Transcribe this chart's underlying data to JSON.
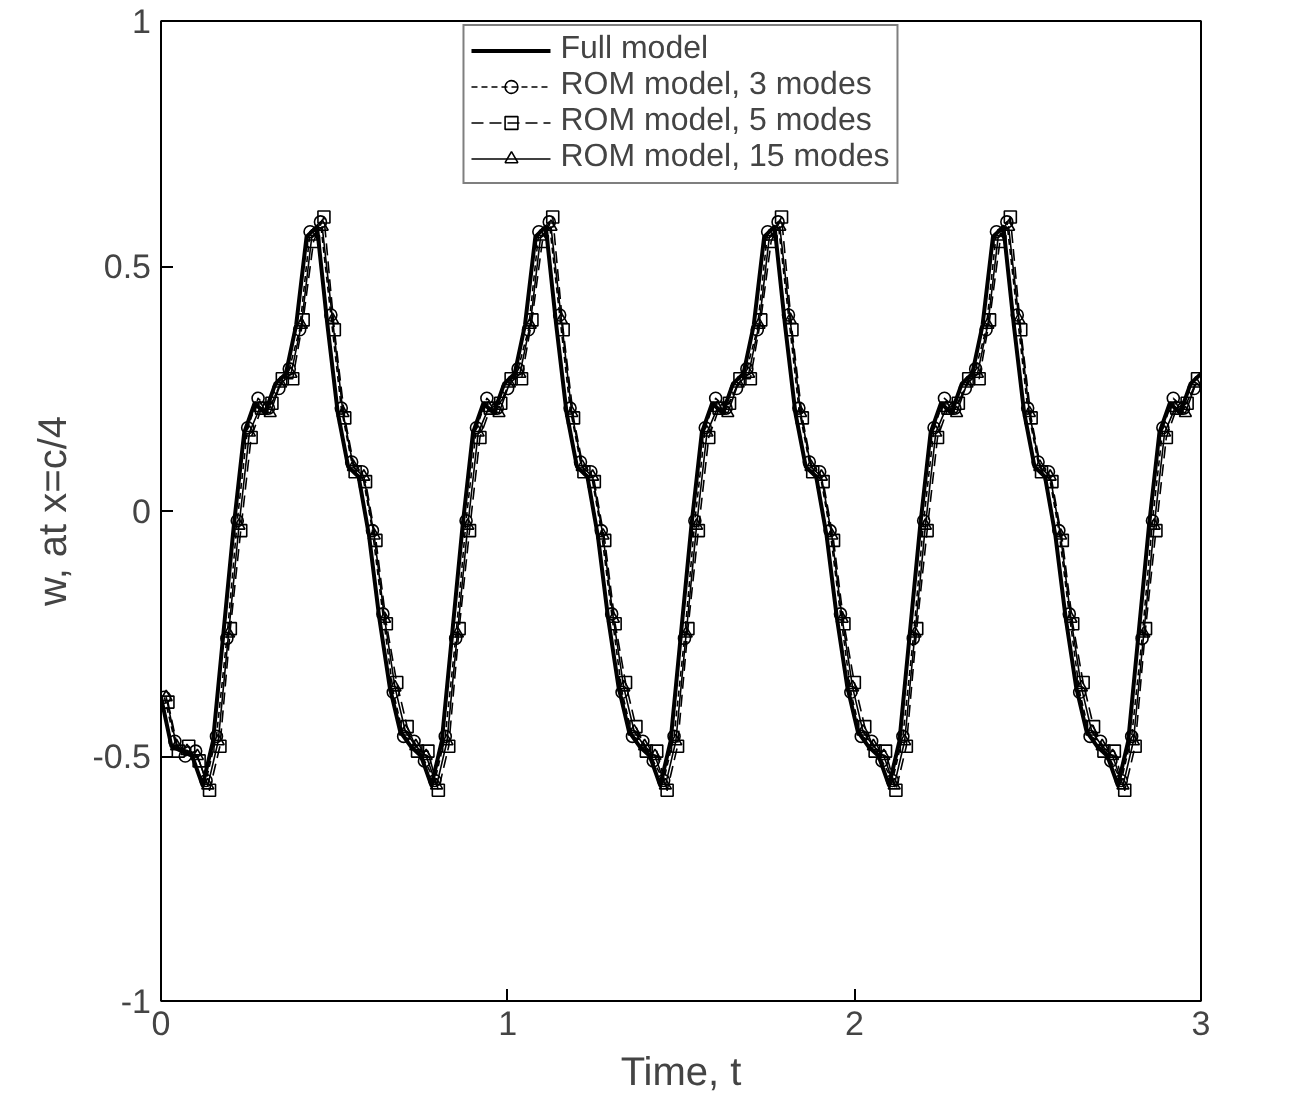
{
  "chart_data": {
    "type": "line",
    "xlabel": "Time, t",
    "ylabel": "w, at x=c/4",
    "xlim": [
      0,
      3
    ],
    "ylim": [
      -1,
      1
    ],
    "xticks": [
      0,
      1,
      2,
      3
    ],
    "yticks": [
      -1,
      -0.5,
      0,
      0.5,
      1
    ],
    "grid": false,
    "legend": "top",
    "x": [
      0,
      0.03,
      0.06,
      0.09,
      0.12,
      0.15,
      0.18,
      0.21,
      0.24,
      0.27,
      0.3,
      0.33,
      0.36,
      0.39,
      0.42,
      0.45,
      0.48,
      0.51,
      0.54,
      0.57,
      0.6,
      0.63,
      0.66,
      0.69,
      0.72,
      0.75,
      0.78,
      0.81,
      0.84,
      0.87,
      0.9,
      0.93,
      0.96,
      0.99,
      1.02,
      1.05,
      1.08,
      1.11,
      1.14,
      1.17,
      1.2,
      1.23,
      1.26,
      1.29,
      1.32,
      1.35,
      1.38,
      1.41,
      1.44,
      1.47,
      1.5,
      1.53,
      1.56,
      1.59,
      1.62,
      1.65,
      1.68,
      1.71,
      1.74,
      1.77,
      1.8,
      1.83,
      1.86,
      1.89,
      1.92,
      1.95,
      1.98,
      2.01,
      2.04,
      2.07,
      2.1,
      2.13,
      2.16,
      2.19,
      2.22,
      2.25,
      2.28,
      2.31,
      2.34,
      2.37,
      2.4,
      2.43,
      2.46,
      2.49,
      2.52,
      2.55,
      2.58,
      2.61,
      2.64,
      2.67,
      2.7,
      2.73,
      2.76,
      2.79,
      2.82,
      2.85,
      2.88,
      2.91,
      2.94,
      2.97,
      3.0
    ],
    "series": [
      {
        "name": "Full model",
        "color": "#000000",
        "marker": "none",
        "line_style": "solid",
        "values": [
          -0.38,
          -0.48,
          -0.49,
          -0.5,
          -0.56,
          -0.47,
          -0.25,
          -0.03,
          0.16,
          0.22,
          0.2,
          0.26,
          0.28,
          0.38,
          0.56,
          0.58,
          0.38,
          0.2,
          0.09,
          0.07,
          -0.05,
          -0.22,
          -0.36,
          -0.45,
          -0.48,
          -0.5,
          -0.56,
          -0.47,
          -0.25,
          -0.03,
          0.16,
          0.22,
          0.2,
          0.26,
          0.28,
          0.38,
          0.56,
          0.58,
          0.38,
          0.2,
          0.09,
          0.07,
          -0.05,
          -0.22,
          -0.36,
          -0.45,
          -0.48,
          -0.5,
          -0.56,
          -0.47,
          -0.25,
          -0.03,
          0.16,
          0.22,
          0.2,
          0.26,
          0.28,
          0.38,
          0.56,
          0.58,
          0.38,
          0.2,
          0.09,
          0.07,
          -0.05,
          -0.22,
          -0.36,
          -0.45,
          -0.48,
          -0.5,
          -0.56,
          -0.47,
          -0.25,
          -0.03,
          0.16,
          0.22,
          0.2,
          0.26,
          0.28,
          0.38,
          0.56,
          0.58,
          0.38,
          0.2,
          0.09,
          0.07,
          -0.05,
          -0.22,
          -0.36,
          -0.45,
          -0.48,
          -0.5,
          -0.56,
          -0.47,
          -0.25,
          -0.03,
          0.16,
          0.22,
          0.2,
          0.26,
          0.28
        ]
      },
      {
        "name": "ROM model, 3 modes",
        "color": "#000000",
        "marker": "circle",
        "line_style": "dotted",
        "x": [
          0.01,
          0.04,
          0.07,
          0.1,
          0.13,
          0.16,
          0.19,
          0.22,
          0.25,
          0.28,
          0.31,
          0.34,
          0.37,
          0.4,
          0.43,
          0.46,
          0.49,
          0.52,
          0.55,
          0.58,
          0.61,
          0.64,
          0.67,
          0.7,
          0.73,
          0.76,
          0.79,
          0.82,
          0.85,
          0.88,
          0.91,
          0.94,
          0.97,
          1.0,
          1.03,
          1.06,
          1.09,
          1.12,
          1.15,
          1.18,
          1.21,
          1.24,
          1.27,
          1.3,
          1.33,
          1.36,
          1.39,
          1.42,
          1.45,
          1.48,
          1.51,
          1.54,
          1.57,
          1.6,
          1.63,
          1.66,
          1.69,
          1.72,
          1.75,
          1.78,
          1.81,
          1.84,
          1.87,
          1.9,
          1.93,
          1.96,
          1.99,
          2.02,
          2.05,
          2.08,
          2.11,
          2.14,
          2.17,
          2.2,
          2.23,
          2.26,
          2.29,
          2.32,
          2.35,
          2.38,
          2.41,
          2.44,
          2.47,
          2.5,
          2.53,
          2.56,
          2.59,
          2.62,
          2.65,
          2.68,
          2.71,
          2.74,
          2.77,
          2.8,
          2.83,
          2.86,
          2.89,
          2.92,
          2.95,
          2.98
        ],
        "values": [
          -0.38,
          -0.47,
          -0.5,
          -0.49,
          -0.55,
          -0.46,
          -0.26,
          -0.02,
          0.17,
          0.23,
          0.21,
          0.25,
          0.29,
          0.37,
          0.57,
          0.59,
          0.4,
          0.21,
          0.1,
          0.08,
          -0.04,
          -0.21,
          -0.37,
          -0.46,
          -0.47,
          -0.51,
          -0.55,
          -0.46,
          -0.26,
          -0.02,
          0.17,
          0.23,
          0.21,
          0.25,
          0.29,
          0.37,
          0.57,
          0.59,
          0.4,
          0.21,
          0.1,
          0.08,
          -0.04,
          -0.21,
          -0.37,
          -0.46,
          -0.47,
          -0.51,
          -0.55,
          -0.46,
          -0.26,
          -0.02,
          0.17,
          0.23,
          0.21,
          0.25,
          0.29,
          0.37,
          0.57,
          0.59,
          0.4,
          0.21,
          0.1,
          0.08,
          -0.04,
          -0.21,
          -0.37,
          -0.46,
          -0.47,
          -0.51,
          -0.55,
          -0.46,
          -0.26,
          -0.02,
          0.17,
          0.23,
          0.21,
          0.25,
          0.29,
          0.37,
          0.57,
          0.59,
          0.4,
          0.21,
          0.1,
          0.08,
          -0.04,
          -0.21,
          -0.37,
          -0.46,
          -0.47,
          -0.51,
          -0.55,
          -0.46,
          -0.26,
          -0.02,
          0.17,
          0.23,
          0.21,
          0.25
        ]
      },
      {
        "name": "ROM model, 5 modes",
        "color": "#000000",
        "marker": "square",
        "line_style": "dashed",
        "x": [
          0.02,
          0.05,
          0.08,
          0.11,
          0.14,
          0.17,
          0.2,
          0.23,
          0.26,
          0.29,
          0.32,
          0.35,
          0.38,
          0.41,
          0.44,
          0.47,
          0.5,
          0.53,
          0.56,
          0.59,
          0.62,
          0.65,
          0.68,
          0.71,
          0.74,
          0.77,
          0.8,
          0.83,
          0.86,
          0.89,
          0.92,
          0.95,
          0.98,
          1.01,
          1.04,
          1.07,
          1.1,
          1.13,
          1.16,
          1.19,
          1.22,
          1.25,
          1.28,
          1.31,
          1.34,
          1.37,
          1.4,
          1.43,
          1.46,
          1.49,
          1.52,
          1.55,
          1.58,
          1.61,
          1.64,
          1.67,
          1.7,
          1.73,
          1.76,
          1.79,
          1.82,
          1.85,
          1.88,
          1.91,
          1.94,
          1.97,
          2.0,
          2.03,
          2.06,
          2.09,
          2.12,
          2.15,
          2.18,
          2.21,
          2.24,
          2.27,
          2.3,
          2.33,
          2.36,
          2.39,
          2.42,
          2.45,
          2.48,
          2.51,
          2.54,
          2.57,
          2.6,
          2.63,
          2.66,
          2.69,
          2.72,
          2.75,
          2.78,
          2.81,
          2.84,
          2.87,
          2.9,
          2.93,
          2.96,
          2.99
        ],
        "values": [
          -0.39,
          -0.49,
          -0.48,
          -0.51,
          -0.57,
          -0.48,
          -0.24,
          -0.04,
          0.15,
          0.21,
          0.22,
          0.27,
          0.27,
          0.39,
          0.55,
          0.6,
          0.37,
          0.19,
          0.08,
          0.06,
          -0.06,
          -0.23,
          -0.35,
          -0.44,
          -0.49,
          -0.49,
          -0.57,
          -0.48,
          -0.24,
          -0.04,
          0.15,
          0.21,
          0.22,
          0.27,
          0.27,
          0.39,
          0.55,
          0.6,
          0.37,
          0.19,
          0.08,
          0.06,
          -0.06,
          -0.23,
          -0.35,
          -0.44,
          -0.49,
          -0.49,
          -0.57,
          -0.48,
          -0.24,
          -0.04,
          0.15,
          0.21,
          0.22,
          0.27,
          0.27,
          0.39,
          0.55,
          0.6,
          0.37,
          0.19,
          0.08,
          0.06,
          -0.06,
          -0.23,
          -0.35,
          -0.44,
          -0.49,
          -0.49,
          -0.57,
          -0.48,
          -0.24,
          -0.04,
          0.15,
          0.21,
          0.22,
          0.27,
          0.27,
          0.39,
          0.55,
          0.6,
          0.37,
          0.19,
          0.08,
          0.06,
          -0.06,
          -0.23,
          -0.35,
          -0.44,
          -0.49,
          -0.49,
          -0.57,
          -0.48,
          -0.24,
          -0.04,
          0.15,
          0.21,
          0.22,
          0.27
        ]
      },
      {
        "name": "ROM model, 15 modes",
        "color": "#000000",
        "marker": "triangle",
        "line_style": "solid",
        "x": [
          0.015,
          0.045,
          0.075,
          0.105,
          0.135,
          0.165,
          0.195,
          0.225,
          0.255,
          0.285,
          0.315,
          0.345,
          0.375,
          0.405,
          0.435,
          0.465,
          0.495,
          0.525,
          0.555,
          0.585,
          0.615,
          0.645,
          0.675,
          0.705,
          0.735,
          0.765,
          0.795,
          0.825,
          0.855,
          0.885,
          0.915,
          0.945,
          0.975,
          1.005,
          1.035,
          1.065,
          1.095,
          1.125,
          1.155,
          1.185,
          1.215,
          1.245,
          1.275,
          1.305,
          1.335,
          1.365,
          1.395,
          1.425,
          1.455,
          1.485,
          1.515,
          1.545,
          1.575,
          1.605,
          1.635,
          1.665,
          1.695,
          1.725,
          1.755,
          1.785,
          1.815,
          1.845,
          1.875,
          1.905,
          1.935,
          1.965,
          1.995,
          2.025,
          2.055,
          2.085,
          2.115,
          2.145,
          2.175,
          2.205,
          2.235,
          2.265,
          2.295,
          2.325,
          2.355,
          2.385,
          2.415,
          2.445,
          2.475,
          2.505,
          2.535,
          2.565,
          2.595,
          2.625,
          2.655,
          2.685,
          2.715,
          2.745,
          2.775,
          2.805,
          2.835,
          2.865,
          2.895,
          2.925,
          2.955,
          2.985
        ],
        "values": [
          -0.38,
          -0.48,
          -0.49,
          -0.5,
          -0.56,
          -0.47,
          -0.25,
          -0.03,
          0.16,
          0.21,
          0.2,
          0.26,
          0.28,
          0.38,
          0.56,
          0.58,
          0.39,
          0.2,
          0.09,
          0.07,
          -0.05,
          -0.22,
          -0.36,
          -0.45,
          -0.48,
          -0.5,
          -0.56,
          -0.47,
          -0.25,
          -0.03,
          0.16,
          0.21,
          0.2,
          0.26,
          0.28,
          0.38,
          0.56,
          0.58,
          0.39,
          0.2,
          0.09,
          0.07,
          -0.05,
          -0.22,
          -0.36,
          -0.45,
          -0.48,
          -0.5,
          -0.56,
          -0.47,
          -0.25,
          -0.03,
          0.16,
          0.21,
          0.2,
          0.26,
          0.28,
          0.38,
          0.56,
          0.58,
          0.39,
          0.2,
          0.09,
          0.07,
          -0.05,
          -0.22,
          -0.36,
          -0.45,
          -0.48,
          -0.5,
          -0.56,
          -0.47,
          -0.25,
          -0.03,
          0.16,
          0.21,
          0.2,
          0.26,
          0.28,
          0.38,
          0.56,
          0.58,
          0.39,
          0.2,
          0.09,
          0.07,
          -0.05,
          -0.22,
          -0.36,
          -0.45,
          -0.48,
          -0.5,
          -0.56,
          -0.47,
          -0.25,
          -0.03,
          0.16,
          0.21,
          0.2,
          0.26
        ]
      }
    ]
  }
}
